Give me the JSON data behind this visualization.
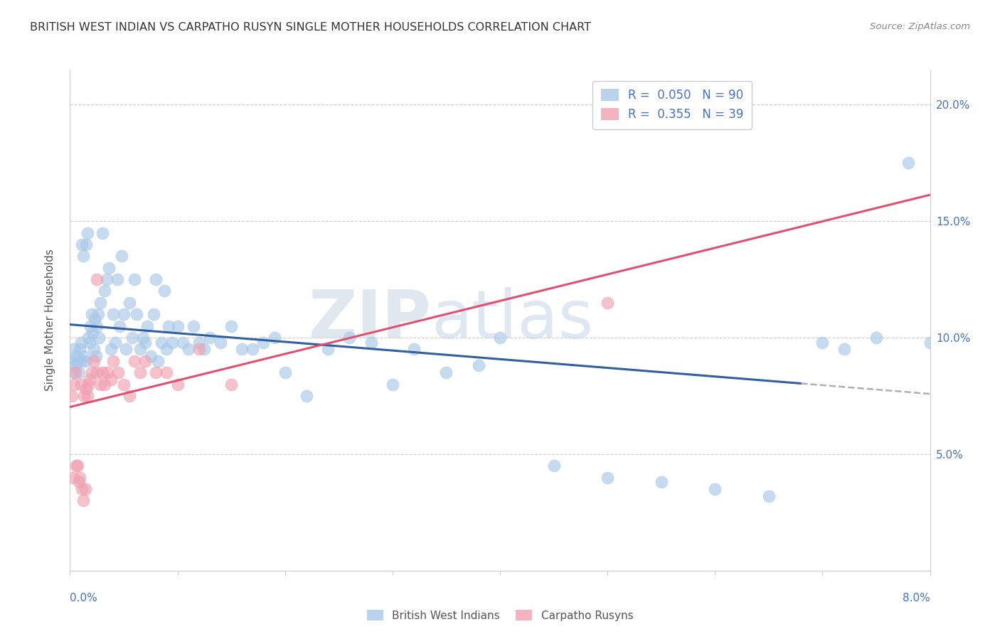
{
  "title": "BRITISH WEST INDIAN VS CARPATHO RUSYN SINGLE MOTHER HOUSEHOLDS CORRELATION CHART",
  "source": "Source: ZipAtlas.com",
  "ylabel": "Single Mother Households",
  "xlim": [
    0.0,
    8.0
  ],
  "ylim": [
    0.0,
    21.5
  ],
  "yticks": [
    5.0,
    10.0,
    15.0,
    20.0
  ],
  "ytick_labels": [
    "5.0%",
    "10.0%",
    "15.0%",
    "20.0%"
  ],
  "blue_R": 0.05,
  "blue_N": 90,
  "pink_R": 0.355,
  "pink_N": 39,
  "blue_color": "#a8c8e8",
  "pink_color": "#f0a0b0",
  "blue_line_color": "#3060a0",
  "pink_line_color": "#e05070",
  "blue_line_solid_end": 6.8,
  "watermark_zip": "ZIP",
  "watermark_atlas": "atlas",
  "legend_label_blue": "British West Indians",
  "legend_label_pink": "Carpatho Rusyns",
  "blue_x": [
    0.02,
    0.03,
    0.04,
    0.05,
    0.06,
    0.07,
    0.08,
    0.09,
    0.1,
    0.1,
    0.11,
    0.12,
    0.13,
    0.14,
    0.15,
    0.16,
    0.17,
    0.18,
    0.19,
    0.2,
    0.21,
    0.22,
    0.23,
    0.24,
    0.25,
    0.26,
    0.27,
    0.28,
    0.3,
    0.32,
    0.34,
    0.36,
    0.38,
    0.4,
    0.42,
    0.44,
    0.46,
    0.48,
    0.5,
    0.52,
    0.55,
    0.58,
    0.6,
    0.62,
    0.65,
    0.68,
    0.7,
    0.72,
    0.75,
    0.78,
    0.8,
    0.82,
    0.85,
    0.88,
    0.9,
    0.92,
    0.95,
    1.0,
    1.05,
    1.1,
    1.15,
    1.2,
    1.25,
    1.3,
    1.4,
    1.5,
    1.6,
    1.7,
    1.8,
    1.9,
    2.0,
    2.2,
    2.4,
    2.6,
    2.8,
    3.0,
    3.2,
    3.5,
    3.8,
    4.0,
    4.5,
    5.0,
    5.5,
    6.0,
    6.5,
    7.0,
    7.2,
    7.5,
    7.8,
    8.0
  ],
  "blue_y": [
    9.0,
    8.5,
    9.5,
    8.8,
    9.2,
    9.0,
    8.5,
    9.5,
    9.0,
    9.8,
    14.0,
    13.5,
    9.2,
    9.0,
    14.0,
    14.5,
    10.0,
    9.8,
    10.5,
    11.0,
    10.2,
    9.5,
    10.8,
    9.2,
    10.5,
    11.0,
    10.0,
    11.5,
    14.5,
    12.0,
    12.5,
    13.0,
    9.5,
    11.0,
    9.8,
    12.5,
    10.5,
    13.5,
    11.0,
    9.5,
    11.5,
    10.0,
    12.5,
    11.0,
    9.5,
    10.0,
    9.8,
    10.5,
    9.2,
    11.0,
    12.5,
    9.0,
    9.8,
    12.0,
    9.5,
    10.5,
    9.8,
    10.5,
    9.8,
    9.5,
    10.5,
    9.8,
    9.5,
    10.0,
    9.8,
    10.5,
    9.5,
    9.5,
    9.8,
    10.0,
    8.5,
    7.5,
    9.5,
    10.0,
    9.8,
    8.0,
    9.5,
    8.5,
    8.8,
    10.0,
    4.5,
    4.0,
    3.8,
    3.5,
    3.2,
    9.8,
    9.5,
    10.0,
    17.5,
    9.8
  ],
  "pink_x": [
    0.02,
    0.03,
    0.04,
    0.05,
    0.06,
    0.07,
    0.08,
    0.09,
    0.1,
    0.11,
    0.12,
    0.13,
    0.14,
    0.15,
    0.16,
    0.17,
    0.18,
    0.2,
    0.22,
    0.25,
    0.28,
    0.3,
    0.32,
    0.35,
    0.38,
    0.4,
    0.45,
    0.5,
    0.55,
    0.6,
    0.65,
    0.7,
    0.8,
    0.9,
    1.0,
    1.2,
    1.5,
    5.0,
    0.25
  ],
  "pink_y": [
    7.5,
    4.0,
    8.0,
    8.5,
    4.5,
    4.5,
    3.8,
    4.0,
    8.0,
    3.5,
    3.0,
    7.5,
    3.5,
    7.8,
    7.5,
    8.0,
    8.2,
    8.5,
    9.0,
    8.5,
    8.0,
    8.5,
    8.0,
    8.5,
    8.2,
    9.0,
    8.5,
    8.0,
    7.5,
    9.0,
    8.5,
    9.0,
    8.5,
    8.5,
    8.0,
    9.5,
    8.0,
    11.5,
    12.5
  ]
}
